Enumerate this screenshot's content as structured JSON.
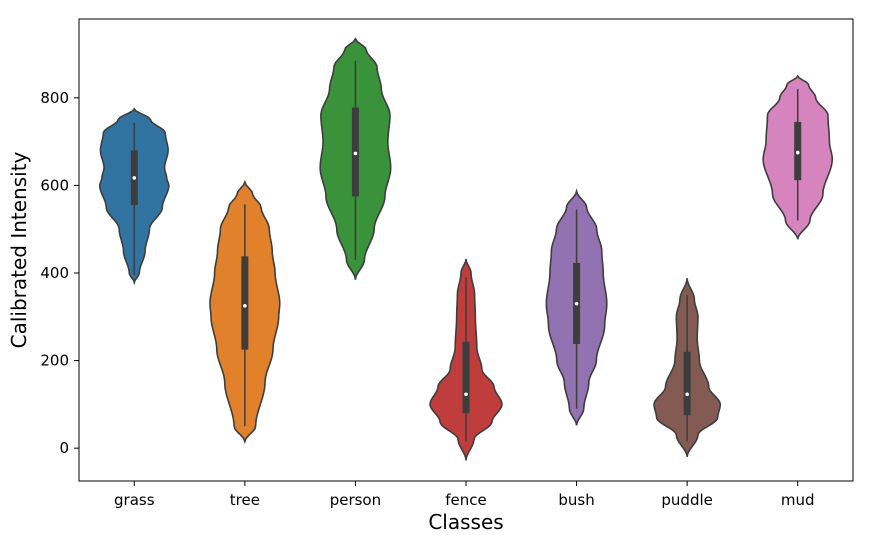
{
  "chart_data": {
    "type": "violin",
    "title": "",
    "xlabel": "Classes",
    "ylabel": "Calibrated Intensity",
    "ylim": [
      -75,
      980
    ],
    "yticks": [
      0,
      200,
      400,
      600,
      800
    ],
    "grid": false,
    "legend": "none",
    "categories": [
      "grass",
      "tree",
      "person",
      "fence",
      "bush",
      "puddle",
      "mud"
    ],
    "colors": [
      "#3274a1",
      "#e1812c",
      "#3a923a",
      "#c03d3e",
      "#9372b2",
      "#845b53",
      "#d684bd"
    ],
    "series": [
      {
        "category": "grass",
        "min": 378,
        "max": 775,
        "q1": 555,
        "median": 617,
        "q3": 680,
        "whisker_low": 395,
        "whisker_high": 743,
        "density": [
          [
            378,
            0
          ],
          [
            400,
            0.14
          ],
          [
            450,
            0.3
          ],
          [
            500,
            0.42
          ],
          [
            550,
            0.78
          ],
          [
            600,
            0.96
          ],
          [
            617,
            0.9
          ],
          [
            640,
            0.84
          ],
          [
            680,
            0.94
          ],
          [
            720,
            0.86
          ],
          [
            750,
            0.45
          ],
          [
            775,
            0
          ]
        ]
      },
      {
        "category": "tree",
        "min": 15,
        "max": 608,
        "q1": 225,
        "median": 325,
        "q3": 438,
        "whisker_low": 50,
        "whisker_high": 557,
        "density": [
          [
            15,
            0
          ],
          [
            50,
            0.3
          ],
          [
            150,
            0.56
          ],
          [
            225,
            0.78
          ],
          [
            300,
            0.94
          ],
          [
            330,
            0.97
          ],
          [
            400,
            0.84
          ],
          [
            450,
            0.76
          ],
          [
            500,
            0.68
          ],
          [
            550,
            0.45
          ],
          [
            580,
            0.22
          ],
          [
            608,
            0
          ]
        ]
      },
      {
        "category": "person",
        "min": 385,
        "max": 935,
        "q1": 575,
        "median": 673,
        "q3": 778,
        "whisker_low": 430,
        "whisker_high": 885,
        "density": [
          [
            385,
            0
          ],
          [
            430,
            0.25
          ],
          [
            500,
            0.52
          ],
          [
            575,
            0.82
          ],
          [
            640,
            0.98
          ],
          [
            700,
            0.9
          ],
          [
            760,
            0.96
          ],
          [
            820,
            0.72
          ],
          [
            870,
            0.6
          ],
          [
            910,
            0.3
          ],
          [
            935,
            0
          ]
        ]
      },
      {
        "category": "fence",
        "min": -28,
        "max": 432,
        "q1": 80,
        "median": 123,
        "q3": 243,
        "whisker_low": 15,
        "whisker_high": 390,
        "density": [
          [
            -28,
            0
          ],
          [
            20,
            0.22
          ],
          [
            60,
            0.72
          ],
          [
            100,
            1.0
          ],
          [
            140,
            0.78
          ],
          [
            180,
            0.44
          ],
          [
            230,
            0.3
          ],
          [
            300,
            0.26
          ],
          [
            350,
            0.24
          ],
          [
            400,
            0.14
          ],
          [
            432,
            0
          ]
        ]
      },
      {
        "category": "bush",
        "min": 52,
        "max": 587,
        "q1": 238,
        "median": 330,
        "q3": 423,
        "whisker_low": 90,
        "whisker_high": 545,
        "density": [
          [
            52,
            0
          ],
          [
            90,
            0.2
          ],
          [
            150,
            0.34
          ],
          [
            200,
            0.55
          ],
          [
            280,
            0.78
          ],
          [
            330,
            0.84
          ],
          [
            400,
            0.74
          ],
          [
            450,
            0.7
          ],
          [
            500,
            0.56
          ],
          [
            550,
            0.28
          ],
          [
            587,
            0
          ]
        ]
      },
      {
        "category": "puddle",
        "min": -20,
        "max": 388,
        "q1": 75,
        "median": 123,
        "q3": 220,
        "whisker_low": 15,
        "whisker_high": 350,
        "density": [
          [
            -20,
            0
          ],
          [
            30,
            0.3
          ],
          [
            70,
            0.85
          ],
          [
            100,
            0.92
          ],
          [
            140,
            0.6
          ],
          [
            200,
            0.34
          ],
          [
            250,
            0.28
          ],
          [
            300,
            0.3
          ],
          [
            340,
            0.2
          ],
          [
            388,
            0
          ]
        ]
      },
      {
        "category": "mud",
        "min": 477,
        "max": 850,
        "q1": 612,
        "median": 675,
        "q3": 745,
        "whisker_low": 520,
        "whisker_high": 820,
        "density": [
          [
            477,
            0
          ],
          [
            520,
            0.34
          ],
          [
            580,
            0.7
          ],
          [
            660,
            0.96
          ],
          [
            700,
            0.88
          ],
          [
            760,
            0.84
          ],
          [
            800,
            0.5
          ],
          [
            830,
            0.3
          ],
          [
            850,
            0
          ]
        ]
      }
    ]
  }
}
